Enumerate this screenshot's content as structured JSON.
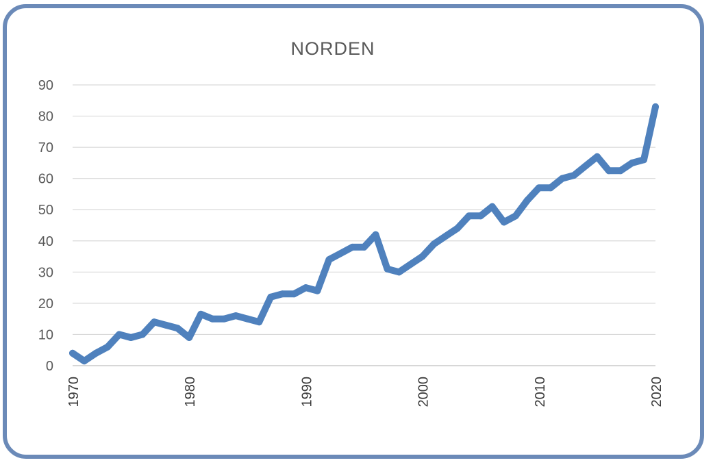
{
  "chart_data": {
    "type": "line",
    "title": "NORDEN",
    "xlabel": "",
    "ylabel": "",
    "xlim": [
      1970,
      2020
    ],
    "ylim": [
      0,
      90
    ],
    "y_ticks": [
      0,
      10,
      20,
      30,
      40,
      50,
      60,
      70,
      80,
      90
    ],
    "x_ticks": [
      1970,
      1980,
      1990,
      2000,
      2010,
      2020
    ],
    "grid": true,
    "legend": "none",
    "series": [
      {
        "color": "#4f81bd",
        "x": [
          1970,
          1971,
          1972,
          1973,
          1974,
          1975,
          1976,
          1977,
          1978,
          1979,
          1980,
          1981,
          1982,
          1983,
          1984,
          1985,
          1986,
          1987,
          1988,
          1989,
          1990,
          1991,
          1992,
          1993,
          1994,
          1995,
          1996,
          1997,
          1998,
          1999,
          2000,
          2001,
          2002,
          2003,
          2004,
          2005,
          2006,
          2007,
          2008,
          2009,
          2010,
          2011,
          2012,
          2013,
          2014,
          2015,
          2016,
          2017,
          2018,
          2019,
          2020
        ],
        "values": [
          4,
          1.5,
          4,
          6,
          10,
          9,
          10,
          14,
          13,
          12,
          9,
          16.5,
          15,
          15,
          16,
          15,
          14,
          22,
          23,
          23,
          25,
          24,
          34,
          36,
          38,
          38,
          42,
          31,
          30,
          32.5,
          35,
          39,
          41.5,
          44,
          48,
          48,
          51,
          46,
          48,
          53,
          57,
          57,
          60,
          61,
          64,
          67,
          62.5,
          62.5,
          65,
          66,
          83
        ]
      }
    ]
  }
}
